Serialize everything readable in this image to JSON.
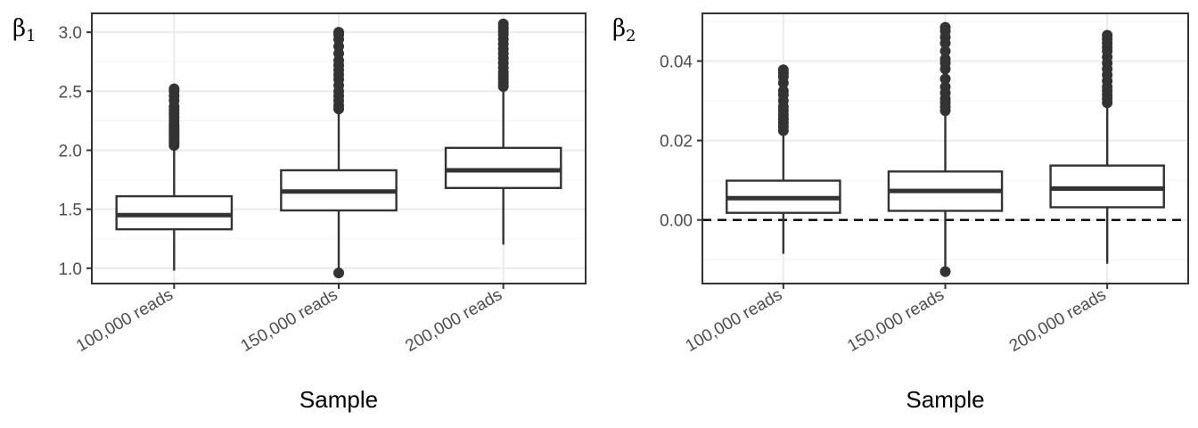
{
  "chart_data": [
    {
      "type": "box",
      "ylabel": "β",
      "ylabel_sub": "1",
      "xlabel": "Sample",
      "categories": [
        "100,000 reads",
        "150,000 reads",
        "200,000 reads"
      ],
      "ylim": [
        0.87,
        3.16
      ],
      "yticks": [
        1.0,
        1.5,
        2.0,
        2.5,
        3.0
      ],
      "ytick_labels": [
        "1.0",
        "1.5",
        "2.0",
        "2.5",
        "3.0"
      ],
      "grid": true,
      "reference_line": null,
      "boxes": [
        {
          "category": "100,000 reads",
          "whisker_low": 0.98,
          "q1": 1.33,
          "median": 1.45,
          "q3": 1.61,
          "whisker_high": 2.02,
          "outliers": [
            2.04,
            2.06,
            2.08,
            2.1,
            2.12,
            2.14,
            2.16,
            2.18,
            2.2,
            2.22,
            2.25,
            2.28,
            2.31,
            2.34,
            2.37,
            2.42,
            2.46,
            2.5,
            2.52
          ]
        },
        {
          "category": "150,000 reads",
          "whisker_low": 1.0,
          "q1": 1.49,
          "median": 1.65,
          "q3": 1.83,
          "whisker_high": 2.34,
          "outliers": [
            0.96,
            2.35,
            2.38,
            2.42,
            2.46,
            2.5,
            2.55,
            2.6,
            2.64,
            2.68,
            2.72,
            2.76,
            2.82,
            2.88,
            2.94,
            2.98,
            3.0
          ]
        },
        {
          "category": "200,000 reads",
          "whisker_low": 1.2,
          "q1": 1.68,
          "median": 1.83,
          "q3": 2.02,
          "whisker_high": 2.53,
          "outliers": [
            2.54,
            2.57,
            2.6,
            2.63,
            2.66,
            2.7,
            2.74,
            2.78,
            2.82,
            2.86,
            2.9,
            2.94,
            2.98,
            3.01,
            3.04,
            3.07
          ]
        }
      ]
    },
    {
      "type": "box",
      "ylabel": "β",
      "ylabel_sub": "2",
      "xlabel": "Sample",
      "categories": [
        "100,000 reads",
        "150,000 reads",
        "200,000 reads"
      ],
      "ylim": [
        -0.016,
        0.052
      ],
      "yticks": [
        0.0,
        0.02,
        0.04
      ],
      "ytick_labels": [
        "0.00",
        "0.02",
        "0.04"
      ],
      "grid": true,
      "reference_line": {
        "y": 0.0,
        "style": "dashed"
      },
      "boxes": [
        {
          "category": "100,000 reads",
          "whisker_low": -0.0085,
          "q1": 0.0018,
          "median": 0.0055,
          "q3": 0.0099,
          "whisker_high": 0.022,
          "outliers": [
            0.0225,
            0.0235,
            0.0245,
            0.0255,
            0.0265,
            0.0275,
            0.0285,
            0.03,
            0.0315,
            0.0325,
            0.0345,
            0.036,
            0.037,
            0.0378
          ]
        },
        {
          "category": "150,000 reads",
          "whisker_low": -0.012,
          "q1": 0.0023,
          "median": 0.0073,
          "q3": 0.0122,
          "whisker_high": 0.027,
          "outliers": [
            -0.013,
            0.0275,
            0.0285,
            0.0295,
            0.0305,
            0.032,
            0.0335,
            0.0355,
            0.038,
            0.0395,
            0.0405,
            0.0425,
            0.0445,
            0.046,
            0.0475,
            0.0485
          ]
        },
        {
          "category": "200,000 reads",
          "whisker_low": -0.011,
          "q1": 0.0032,
          "median": 0.0079,
          "q3": 0.0137,
          "whisker_high": 0.0295,
          "outliers": [
            0.0295,
            0.0305,
            0.0315,
            0.0325,
            0.0335,
            0.035,
            0.0365,
            0.038,
            0.0395,
            0.041,
            0.0425,
            0.0435,
            0.0445,
            0.0455,
            0.0465
          ]
        }
      ]
    }
  ],
  "colors": {
    "box_line": "#333333",
    "box_fill": "#ffffff",
    "grid_major": "#ebebeb",
    "grid_minor": "#f5f5f5",
    "panel_border": "#333333",
    "tick_text": "#4d4d4d",
    "axis_title": "#000000"
  }
}
